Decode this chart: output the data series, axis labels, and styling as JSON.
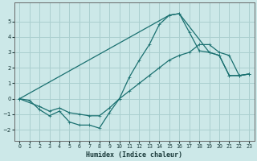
{
  "xlabel": "Humidex (Indice chaleur)",
  "bg_color": "#cce8e8",
  "grid_color": "#aacfcf",
  "line_color": "#1a7070",
  "xlim": [
    -0.5,
    23.5
  ],
  "ylim": [
    -2.7,
    6.2
  ],
  "xticks": [
    0,
    1,
    2,
    3,
    4,
    5,
    6,
    7,
    8,
    9,
    10,
    11,
    12,
    13,
    14,
    15,
    16,
    17,
    18,
    19,
    20,
    21,
    22,
    23
  ],
  "yticks": [
    -2,
    -1,
    0,
    1,
    2,
    3,
    4,
    5
  ],
  "series1_x": [
    0,
    1,
    2,
    3,
    4,
    5,
    6,
    7,
    8,
    9,
    10,
    11,
    12,
    13,
    14,
    15,
    16,
    17,
    18,
    19,
    20,
    21,
    22,
    23
  ],
  "series1_y": [
    0.0,
    -0.1,
    -0.7,
    -1.1,
    -0.8,
    -1.5,
    -1.7,
    -1.7,
    -1.9,
    -0.9,
    0.0,
    1.4,
    2.5,
    3.5,
    4.8,
    5.4,
    5.5,
    4.3,
    3.1,
    3.0,
    2.8,
    1.5,
    1.5,
    1.6
  ],
  "series2_x": [
    0,
    2,
    3,
    4,
    5,
    6,
    7,
    8,
    9,
    10,
    11,
    12,
    13,
    14,
    15,
    16,
    17,
    18,
    19,
    20,
    21,
    22,
    23
  ],
  "series2_y": [
    0.0,
    -0.5,
    -0.8,
    -0.6,
    -0.9,
    -1.0,
    -1.1,
    -1.1,
    -0.6,
    0.0,
    0.5,
    1.0,
    1.5,
    2.0,
    2.5,
    2.8,
    3.0,
    3.5,
    3.5,
    3.0,
    2.8,
    1.5,
    1.6
  ],
  "series3_x": [
    0,
    15,
    16,
    19,
    20,
    21,
    22,
    23
  ],
  "series3_y": [
    0.0,
    5.4,
    5.5,
    3.0,
    2.8,
    1.5,
    1.5,
    1.6
  ]
}
